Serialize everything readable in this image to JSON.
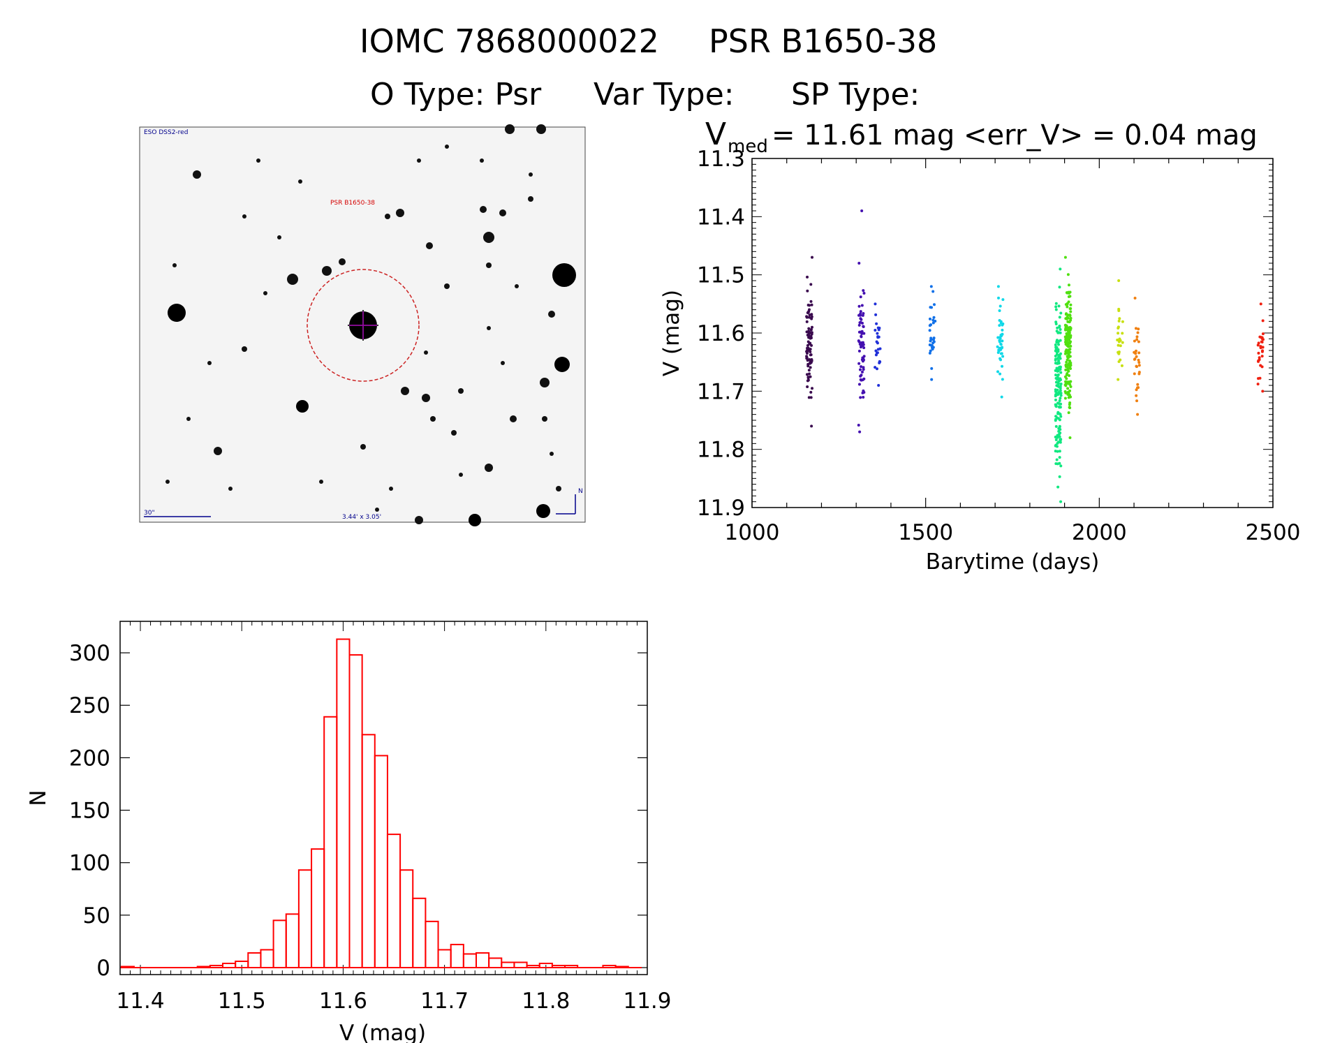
{
  "header": {
    "title_left": "IOMC 7868000022",
    "title_right": "PSR B1650-38",
    "otype": "O Type: Psr",
    "vartype": "Var Type:",
    "sptype": "SP Type:"
  },
  "image_panel": {
    "survey_label": "ESO DSS2-red",
    "target_label": "PSR B1650-38",
    "scale_label": "30\"",
    "fov_label": "3.44' x 3.05'",
    "north_label": "N"
  },
  "colors": {
    "histogram": "#ff0000",
    "image_labels": "#00008b",
    "target_label": "#d40000",
    "circle": "#cc2222"
  },
  "chart_data": [
    {
      "type": "scatter",
      "name": "light-curve",
      "title_prefix": "V",
      "title_sub": "med",
      "title_rest": "= 11.61 mag <err_V> = 0.04 mag",
      "xlabel": "Barytime (days)",
      "ylabel": "V (mag)",
      "xlim": [
        1000,
        2500
      ],
      "ylim": [
        11.9,
        11.3
      ],
      "xticks": [
        "1000",
        "1500",
        "2000",
        "2500"
      ],
      "yticks": [
        "11.3",
        "11.4",
        "11.5",
        "11.6",
        "11.7",
        "11.8",
        "11.9"
      ],
      "groups": [
        {
          "x": 1165,
          "ymin": 11.47,
          "ymax": 11.76,
          "n": 90,
          "color": "#3a0a4e"
        },
        {
          "x": 1315,
          "ymin": 11.48,
          "ymax": 11.77,
          "n": 70,
          "color": "#4410b0"
        },
        {
          "x": 1362,
          "ymin": 11.55,
          "ymax": 11.69,
          "n": 25,
          "color": "#2030d8"
        },
        {
          "x": 1520,
          "ymin": 11.52,
          "ymax": 11.68,
          "n": 30,
          "color": "#1070e8"
        },
        {
          "x": 1715,
          "ymin": 11.52,
          "ymax": 11.71,
          "n": 45,
          "color": "#10d8e8"
        },
        {
          "x": 1882,
          "ymin": 11.49,
          "ymax": 11.89,
          "n": 170,
          "color": "#10e880"
        },
        {
          "x": 1910,
          "ymin": 11.47,
          "ymax": 11.78,
          "n": 170,
          "color": "#50e010"
        },
        {
          "x": 2060,
          "ymin": 11.51,
          "ymax": 11.68,
          "n": 25,
          "color": "#c8e010"
        },
        {
          "x": 2108,
          "ymin": 11.54,
          "ymax": 11.74,
          "n": 30,
          "color": "#f08010"
        },
        {
          "x": 2465,
          "ymin": 11.55,
          "ymax": 11.7,
          "n": 30,
          "color": "#f02010"
        }
      ],
      "outliers": [
        {
          "x": 1316,
          "y": 11.39,
          "color": "#4410b0"
        }
      ]
    },
    {
      "type": "bar",
      "name": "histogram",
      "xlabel": "V (mag)",
      "ylabel": "N",
      "xlim": [
        11.38,
        11.9
      ],
      "ylim": [
        0,
        330
      ],
      "xticks": [
        "11.4",
        "11.5",
        "11.6",
        "11.7",
        "11.8",
        "11.9"
      ],
      "yticks": [
        "0",
        "50",
        "100",
        "150",
        "200",
        "250",
        "300"
      ],
      "bin_start": 11.3875,
      "bin_width": 0.0125,
      "values": [
        1,
        0,
        0,
        0,
        0,
        0,
        1,
        2,
        4,
        6,
        14,
        17,
        45,
        51,
        93,
        113,
        239,
        313,
        298,
        222,
        202,
        127,
        93,
        66,
        44,
        17,
        22,
        13,
        14,
        9,
        5,
        5,
        2,
        4,
        2,
        2,
        0,
        0,
        2,
        1,
        0
      ]
    }
  ]
}
